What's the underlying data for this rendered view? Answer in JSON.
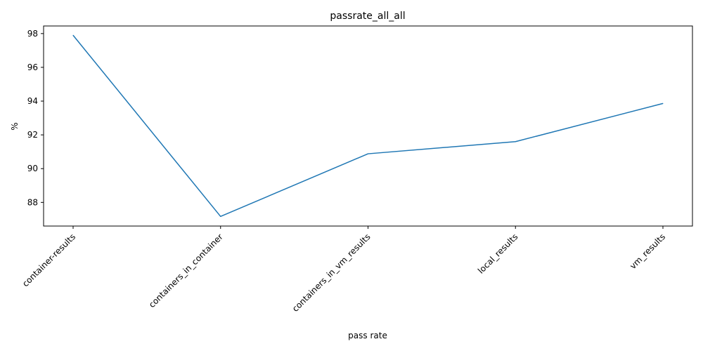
{
  "chart_data": {
    "type": "line",
    "title": "passrate_all_all",
    "xlabel": "pass rate",
    "ylabel": "%",
    "categories": [
      "container-results",
      "containers_in_container",
      "containers_in_vm_results",
      "local_results",
      "vm_results"
    ],
    "series": [
      {
        "values": [
          97.9,
          87.17,
          90.88,
          91.6,
          93.86
        ],
        "color": "#1f77b4"
      }
    ],
    "ylim": [
      86.6,
      98.45
    ],
    "yticks": [
      88,
      90,
      92,
      94,
      96,
      98
    ],
    "grid": false
  }
}
